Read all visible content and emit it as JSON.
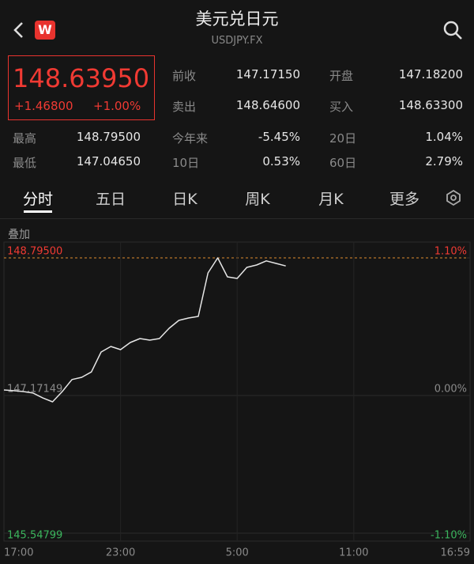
{
  "header": {
    "title": "美元兑日元",
    "subtitle": "USDJPY.FX",
    "logo": "W"
  },
  "quote": {
    "price": "148.63950",
    "change": "+1.46800",
    "change_pct": "+1.00%"
  },
  "stats": [
    {
      "label": "前收",
      "value": "147.17150"
    },
    {
      "label": "开盘",
      "value": "147.18200"
    },
    {
      "label": "卖出",
      "value": "148.64600"
    },
    {
      "label": "买入",
      "value": "148.63300"
    },
    {
      "label": "最高",
      "value": "148.79500"
    },
    {
      "label": "今年来",
      "value": "-5.45%"
    },
    {
      "label": "20日",
      "value": "1.04%"
    },
    {
      "label": "最低",
      "value": "147.04650"
    },
    {
      "label": "10日",
      "value": "0.53%"
    },
    {
      "label": "60日",
      "value": "2.79%"
    }
  ],
  "tabs": [
    "分时",
    "五日",
    "日K",
    "周K",
    "月K",
    "更多"
  ],
  "overlay": "叠加",
  "chart_data": {
    "type": "line",
    "x": [
      "17:00",
      "17:30",
      "18:00",
      "18:30",
      "19:00",
      "19:30",
      "20:00",
      "20:30",
      "21:00",
      "21:30",
      "22:00",
      "22:30",
      "23:00",
      "23:30",
      "0:00",
      "0:30",
      "1:00",
      "1:30",
      "2:00",
      "2:30",
      "3:00",
      "3:30",
      "4:00",
      "4:30",
      "5:00",
      "5:30",
      "6:00",
      "6:30",
      "7:00",
      "7:30"
    ],
    "series": [
      {
        "color": "#e6e6e6",
        "values": [
          147.237,
          147.228,
          147.218,
          147.2,
          147.143,
          147.097,
          147.218,
          147.36,
          147.386,
          147.45,
          147.685,
          147.75,
          147.713,
          147.797,
          147.843,
          147.825,
          147.843,
          147.965,
          148.058,
          148.086,
          148.105,
          148.618,
          148.795,
          148.571,
          148.552,
          148.683,
          148.711,
          148.76,
          148.73,
          148.7
        ]
      }
    ],
    "xlim": [
      "17:00",
      "16:59"
    ],
    "xticks": [
      "17:00",
      "23:00",
      "5:00",
      "11:00",
      "16:59"
    ],
    "ylim": [
      145.54799,
      148.795
    ],
    "yticks": [
      {
        "value": 148.795,
        "label": "148.79500"
      },
      {
        "value": 147.17149,
        "label": "147.17149"
      },
      {
        "value": 145.54799,
        "label": "145.54799"
      }
    ],
    "y2lim": [
      -1.1,
      1.1
    ],
    "y2ticks": [
      {
        "value": 1.1,
        "label": "1.10%"
      },
      {
        "value": 0,
        "label": "0.00%"
      },
      {
        "value": -1.1,
        "label": "-1.10%"
      }
    ]
  }
}
